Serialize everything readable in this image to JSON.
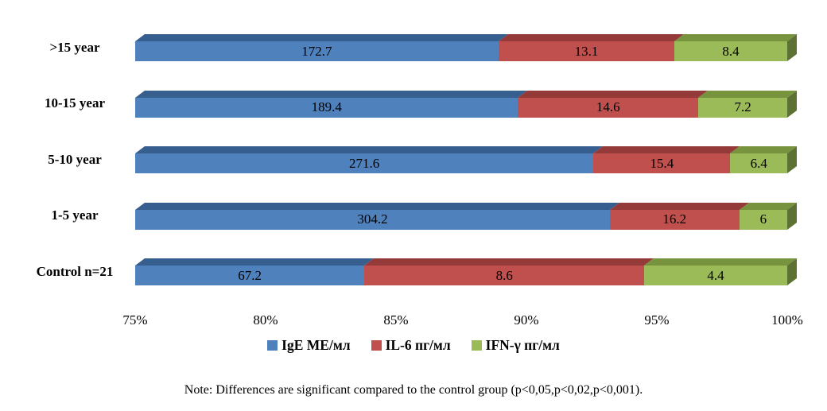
{
  "chart_data": {
    "type": "bar",
    "variant": "100-percent-stacked-horizontal-3d",
    "categories": [
      ">15 year",
      "10-15 year",
      "5-10 year",
      "1-5 year",
      "Control n=21"
    ],
    "series": [
      {
        "name": "IgE МЕ/мл",
        "color": "#4F81BD",
        "color_dark": "#365F8F",
        "values": [
          172.7,
          189.4,
          271.6,
          304.2,
          67.2
        ]
      },
      {
        "name": "IL-6 пг/мл",
        "color": "#C0504D",
        "color_dark": "#943A38",
        "values": [
          13.1,
          14.6,
          15.4,
          16.2,
          8.6
        ]
      },
      {
        "name": "IFN-γ пг/мл",
        "color": "#9BBB59",
        "color_dark": "#77933D",
        "color_side": "#5C7133",
        "values": [
          8.4,
          7.2,
          6.4,
          6,
          4.4
        ]
      }
    ],
    "x_axis": {
      "min": 75,
      "max": 100,
      "ticks": [
        "75%",
        "80%",
        "85%",
        "90%",
        "95%",
        "100%"
      ]
    },
    "legend_position": "bottom",
    "grid": false,
    "title": ""
  },
  "note": "Note: Differences are significant compared to the control group (p<0,05,p<0,02,p<0,001)."
}
